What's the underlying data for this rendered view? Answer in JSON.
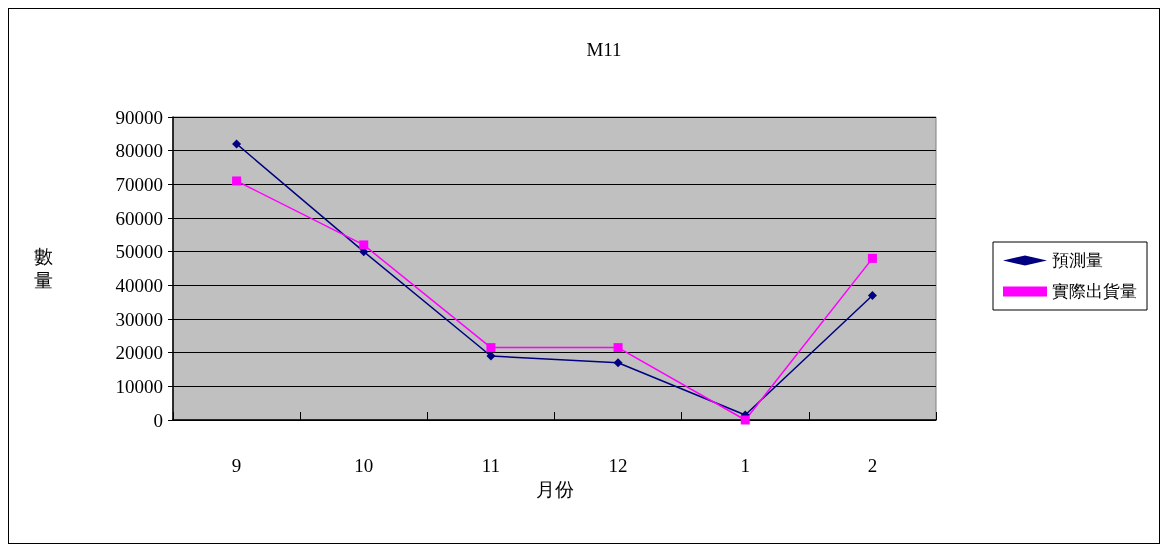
{
  "chart_data": {
    "type": "line",
    "title": "M11",
    "xlabel": "月份",
    "ylabel": "數量",
    "categories": [
      "9",
      "10",
      "11",
      "12",
      "1",
      "2"
    ],
    "series": [
      {
        "name": "預測量",
        "color": "#000080",
        "marker": "diamond",
        "values": [
          82000,
          50000,
          19000,
          17000,
          1500,
          37000
        ]
      },
      {
        "name": "實際出貨量",
        "color": "#ff00ff",
        "marker": "square",
        "values": [
          71000,
          52000,
          21500,
          21500,
          0,
          48000
        ]
      }
    ],
    "ylim": [
      0,
      90000
    ],
    "yticks": [
      0,
      10000,
      20000,
      30000,
      40000,
      50000,
      60000,
      70000,
      80000,
      90000
    ],
    "grid": "y",
    "legend": "right"
  }
}
